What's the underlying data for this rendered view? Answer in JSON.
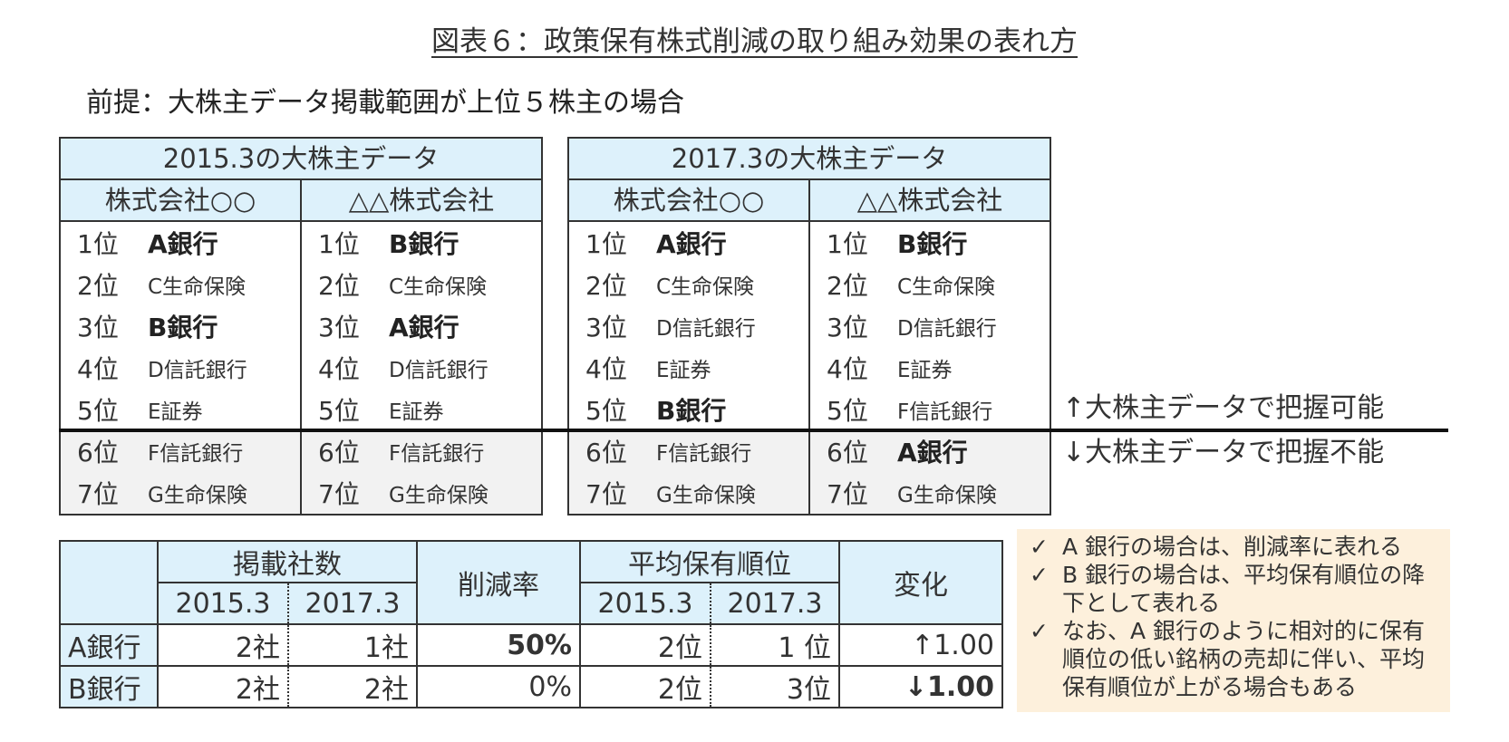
{
  "title": "図表６：政策保有株式削減の取り組み効果の表れ方",
  "premise": "前提：大株主データ掲載範囲が上位５株主の場合",
  "panels": [
    {
      "header": "2015.3の大株主データ",
      "companies": [
        {
          "name": "株式会社○○",
          "ranks": [
            {
              "rank": "1位",
              "holder": "A銀行",
              "bold": true
            },
            {
              "rank": "2位",
              "holder": "C生命保険",
              "bold": false
            },
            {
              "rank": "3位",
              "holder": "B銀行",
              "bold": true
            },
            {
              "rank": "4位",
              "holder": "D信託銀行",
              "bold": false
            },
            {
              "rank": "5位",
              "holder": "E証券",
              "bold": false
            },
            {
              "rank": "6位",
              "holder": "F信託銀行",
              "bold": false
            },
            {
              "rank": "7位",
              "holder": "G生命保険",
              "bold": false
            }
          ]
        },
        {
          "name": "△△株式会社",
          "ranks": [
            {
              "rank": "1位",
              "holder": "B銀行",
              "bold": true
            },
            {
              "rank": "2位",
              "holder": "C生命保険",
              "bold": false
            },
            {
              "rank": "3位",
              "holder": "A銀行",
              "bold": true
            },
            {
              "rank": "4位",
              "holder": "D信託銀行",
              "bold": false
            },
            {
              "rank": "5位",
              "holder": "E証券",
              "bold": false
            },
            {
              "rank": "6位",
              "holder": "F信託銀行",
              "bold": false
            },
            {
              "rank": "7位",
              "holder": "G生命保険",
              "bold": false
            }
          ]
        }
      ]
    },
    {
      "header": "2017.3の大株主データ",
      "companies": [
        {
          "name": "株式会社○○",
          "ranks": [
            {
              "rank": "1位",
              "holder": "A銀行",
              "bold": true
            },
            {
              "rank": "2位",
              "holder": "C生命保険",
              "bold": false
            },
            {
              "rank": "3位",
              "holder": "D信託銀行",
              "bold": false
            },
            {
              "rank": "4位",
              "holder": "E証券",
              "bold": false
            },
            {
              "rank": "5位",
              "holder": "B銀行",
              "bold": true
            },
            {
              "rank": "6位",
              "holder": "F信託銀行",
              "bold": false
            },
            {
              "rank": "7位",
              "holder": "G生命保険",
              "bold": false
            }
          ]
        },
        {
          "name": "△△株式会社",
          "ranks": [
            {
              "rank": "1位",
              "holder": "B銀行",
              "bold": true
            },
            {
              "rank": "2位",
              "holder": "C生命保険",
              "bold": false
            },
            {
              "rank": "3位",
              "holder": "D信託銀行",
              "bold": false
            },
            {
              "rank": "4位",
              "holder": "E証券",
              "bold": false
            },
            {
              "rank": "5位",
              "holder": "F信託銀行",
              "bold": false
            },
            {
              "rank": "6位",
              "holder": "A銀行",
              "bold": true
            },
            {
              "rank": "7位",
              "holder": "G生命保険",
              "bold": false
            }
          ]
        }
      ]
    }
  ],
  "side_notes": {
    "visible": "↑大株主データで把握可能",
    "hidden": "↓大株主データで把握不能"
  },
  "summary": {
    "headers": {
      "listed_count": "掲載社数",
      "reduction_rate": "削減率",
      "avg_rank": "平均保有順位",
      "change": "変化",
      "year_2015": "2015.3",
      "year_2017": "2017.3"
    },
    "rows": [
      {
        "bank": "A銀行",
        "count_2015": "2社",
        "count_2017": "1社",
        "reduction": "50%",
        "rank_2015": "2位",
        "rank_2017": "1 位",
        "change": "↑1.00"
      },
      {
        "bank": "B銀行",
        "count_2015": "2社",
        "count_2017": "2社",
        "reduction": "0%",
        "rank_2015": "2位",
        "rank_2017": "3位",
        "change": "↓1.00"
      }
    ]
  },
  "notes": [
    {
      "check": "✓",
      "text": "A 銀行の場合は、削減率に表れる"
    },
    {
      "check": "✓",
      "text": "B 銀行の場合は、平均保有順位の降下として表れる"
    },
    {
      "check": "✓",
      "text": "なお、A 銀行のように相対的に保有順位の低い銘柄の売却に伴い、平均保有順位が上がる場合もある"
    }
  ]
}
